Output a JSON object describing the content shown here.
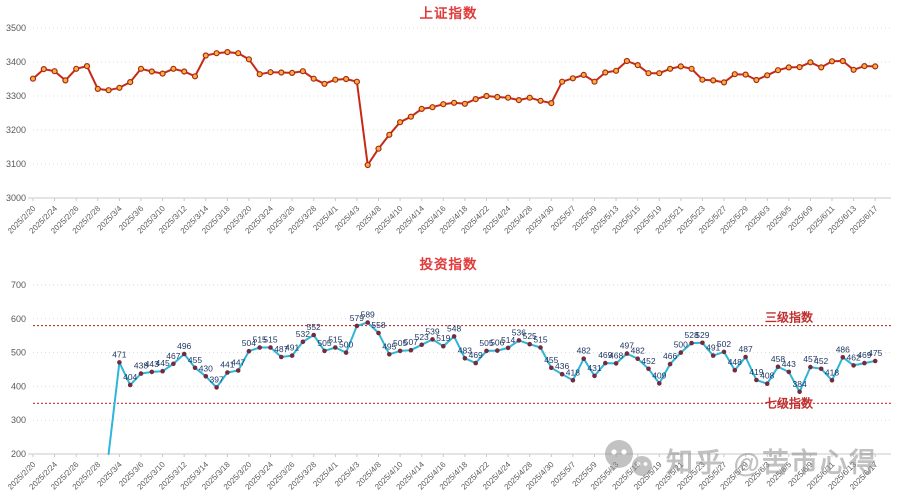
{
  "watermark": {
    "text": "知乎 @苦市心得",
    "icon": "chat-bubbles"
  },
  "chart_data": [
    {
      "type": "line",
      "title": "上证指数",
      "title_color": "#e03a3a",
      "ylim": [
        3000,
        3500
      ],
      "ytick_step": 100,
      "grid": "dotted-horizontal",
      "legend_position": "none",
      "line_color": "#c62a16",
      "marker_fill": "#ffae3b",
      "marker_stroke": "#a62b17",
      "x_tick_labels": [
        "2025/2/20",
        "2025/2/24",
        "2025/2/26",
        "2025/2/28",
        "2025/3/4",
        "2025/3/6",
        "2025/3/10",
        "2025/3/12",
        "2025/3/14",
        "2025/3/18",
        "2025/3/20",
        "2025/3/24",
        "2025/3/26",
        "2025/3/28",
        "2025/4/1",
        "2025/4/3",
        "2025/4/8",
        "2025/4/10",
        "2025/4/14",
        "2025/4/16",
        "2025/4/18",
        "2025/4/22",
        "2025/4/24",
        "2025/4/28",
        "2025/4/30",
        "2025/5/7",
        "2025/5/9",
        "2025/5/13",
        "2025/5/15",
        "2025/5/19",
        "2025/5/21",
        "2025/5/23",
        "2025/5/27",
        "2025/5/29",
        "2025/6/3",
        "2025/6/5",
        "2025/6/9",
        "2025/6/11",
        "2025/6/13",
        "2025/6/17"
      ],
      "points_per_tick": 2,
      "start_slot": 0,
      "show_value_labels": false,
      "values": [
        3351,
        3379,
        3373,
        3346,
        3380,
        3388,
        3321,
        3317,
        3324,
        3341,
        3380,
        3372,
        3366,
        3380,
        3372,
        3358,
        3419,
        3426,
        3429,
        3426,
        3408,
        3364,
        3370,
        3369,
        3368,
        3373,
        3351,
        3336,
        3348,
        3350,
        3342,
        3097,
        3145,
        3186,
        3223,
        3239,
        3262,
        3267,
        3276,
        3280,
        3277,
        3291,
        3300,
        3297,
        3295,
        3288,
        3295,
        3286,
        3279,
        3342,
        3352,
        3362,
        3342,
        3369,
        3374,
        3403,
        3391,
        3367,
        3367,
        3380,
        3387,
        3380,
        3348,
        3346,
        3340,
        3364,
        3363,
        3347,
        3361,
        3376,
        3384,
        3385,
        3399,
        3384,
        3402,
        3403,
        3377,
        3388,
        3387
      ]
    },
    {
      "type": "line",
      "title": "投资指数",
      "title_color": "#e03a3a",
      "ylim": [
        200,
        700
      ],
      "ytick_step": 100,
      "grid": "dotted-horizontal",
      "legend_position": "none",
      "line_color": "#2eb6d9",
      "marker_fill": "#752b3d",
      "marker_stroke": "none",
      "label_color": "#1f3864",
      "x_tick_labels": [
        "2025/2/20",
        "2025/2/24",
        "2025/2/26",
        "2025/2/28",
        "2025/3/4",
        "2025/3/6",
        "2025/3/10",
        "2025/3/12",
        "2025/3/14",
        "2025/3/18",
        "2025/3/20",
        "2025/3/24",
        "2025/3/26",
        "2025/3/28",
        "2025/4/1",
        "2025/4/3",
        "2025/4/8",
        "2025/4/10",
        "2025/4/14",
        "2025/4/16",
        "2025/4/18",
        "2025/4/22",
        "2025/4/24",
        "2025/4/28",
        "2025/4/30",
        "2025/5/7",
        "2025/5/9",
        "2025/5/13",
        "2025/5/15",
        "2025/5/19",
        "2025/5/21",
        "2025/5/23",
        "2025/5/27",
        "2025/5/29",
        "2025/6/3",
        "2025/6/5",
        "2025/6/9",
        "2025/6/11",
        "2025/6/13",
        "2025/6/17"
      ],
      "points_per_tick": 2,
      "start_slot": 8,
      "lead_in_from_bottom": true,
      "show_value_labels": true,
      "values": [
        471,
        404,
        438,
        443,
        445,
        467,
        496,
        455,
        430,
        397,
        441,
        447,
        504,
        515,
        515,
        487,
        491,
        532,
        552,
        505,
        515,
        500,
        579,
        589,
        558,
        495,
        505,
        507,
        523,
        539,
        519,
        548,
        483,
        469,
        505,
        506,
        514,
        536,
        525,
        515,
        455,
        436,
        418,
        482,
        431,
        469,
        468,
        497,
        482,
        452,
        409,
        466,
        500,
        528,
        529,
        491,
        502,
        448,
        487,
        419,
        408,
        458,
        443,
        384,
        457,
        452,
        418,
        486,
        462,
        469,
        475
      ],
      "thresholds": [
        {
          "value": 580,
          "label": "三级指数",
          "color": "#c03030",
          "style": "dotted"
        },
        {
          "value": 350,
          "label": "七级指数",
          "color": "#c03030",
          "style": "dotted"
        }
      ]
    }
  ]
}
